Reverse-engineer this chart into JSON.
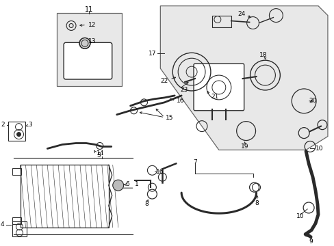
{
  "bg_color": "#ffffff",
  "line_color": "#2a2a2a",
  "label_color": "#000000",
  "fig_width": 4.89,
  "fig_height": 3.6,
  "dpi": 100,
  "gray_fill": "#d8d8d8",
  "light_gray": "#e8e8e8"
}
